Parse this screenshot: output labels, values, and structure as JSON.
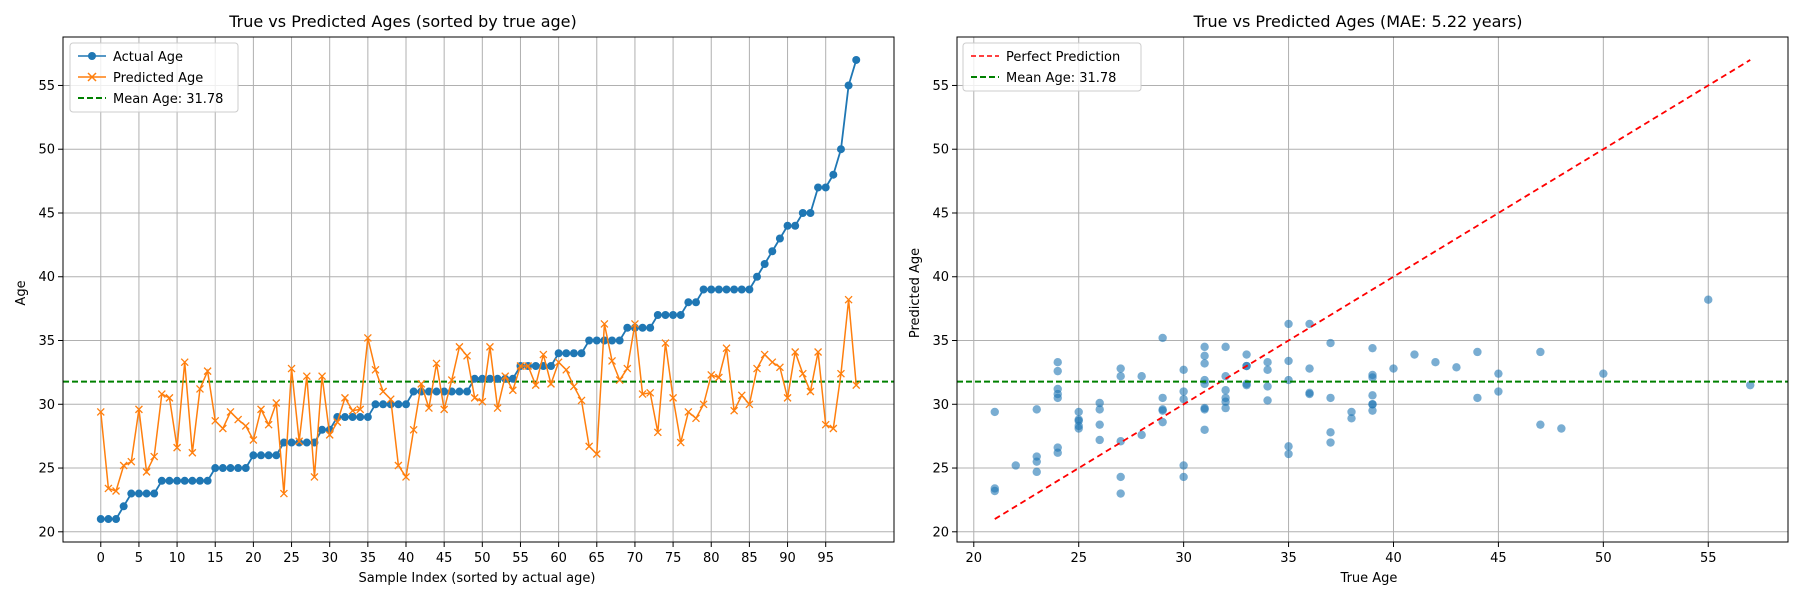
{
  "colors": {
    "actual": "#1f77b4",
    "predicted": "#ff7f0e",
    "mean": "#008000",
    "perfect": "#ff0000",
    "scatter": "#1f77b4",
    "grid": "#b0b0b0"
  },
  "chart_data": [
    {
      "type": "line",
      "title": "True vs Predicted Ages (sorted by true age)",
      "xlabel": "Sample Index (sorted by actual age)",
      "ylabel": "Age",
      "xlim": [
        -4.95,
        103.95
      ],
      "ylim": [
        19.2,
        58.8
      ],
      "grid": true,
      "legend_position": "top-left",
      "x_ticks": [
        0,
        5,
        10,
        15,
        20,
        25,
        30,
        35,
        40,
        45,
        50,
        55,
        60,
        65,
        70,
        75,
        80,
        85,
        90,
        95
      ],
      "y_ticks": [
        20,
        25,
        30,
        35,
        40,
        45,
        50,
        55
      ],
      "series": [
        {
          "name": "Actual Age",
          "marker": "circle",
          "values": [
            21,
            21,
            21,
            22,
            23,
            23,
            23,
            23,
            24,
            24,
            24,
            24,
            24,
            24,
            24,
            25,
            25,
            25,
            25,
            25,
            26,
            26,
            26,
            26,
            27,
            27,
            27,
            27,
            27,
            28,
            28,
            29,
            29,
            29,
            29,
            29,
            30,
            30,
            30,
            30,
            30,
            31,
            31,
            31,
            31,
            31,
            31,
            31,
            31,
            32,
            32,
            32,
            32,
            32,
            32,
            33,
            33,
            33,
            33,
            33,
            34,
            34,
            34,
            34,
            35,
            35,
            35,
            35,
            35,
            36,
            36,
            36,
            36,
            37,
            37,
            37,
            37,
            38,
            38,
            39,
            39,
            39,
            39,
            39,
            39,
            39,
            40,
            41,
            42,
            43,
            44,
            44,
            45,
            45,
            47,
            47,
            48,
            50,
            55,
            57
          ]
        },
        {
          "name": "Predicted Age",
          "marker": "x",
          "values": [
            29.4,
            23.4,
            23.2,
            25.2,
            25.5,
            29.6,
            24.7,
            25.9,
            30.8,
            30.5,
            26.6,
            33.3,
            26.2,
            31.2,
            32.6,
            28.7,
            28.1,
            29.4,
            28.8,
            28.3,
            27.2,
            29.6,
            28.4,
            30.1,
            23.0,
            32.8,
            27.1,
            32.2,
            24.3,
            32.2,
            27.6,
            28.6,
            30.5,
            29.5,
            29.6,
            35.2,
            32.7,
            31.0,
            30.4,
            25.2,
            24.3,
            28.0,
            31.6,
            29.7,
            33.2,
            29.6,
            31.9,
            34.5,
            33.8,
            30.5,
            30.2,
            34.5,
            29.7,
            32.2,
            31.1,
            33.0,
            33.0,
            31.5,
            33.9,
            31.6,
            33.3,
            32.7,
            31.4,
            30.3,
            26.7,
            26.1,
            36.3,
            33.4,
            31.9,
            32.8,
            36.3,
            30.8,
            30.9,
            27.8,
            34.8,
            30.5,
            27.0,
            29.4,
            28.9,
            30.0,
            32.3,
            32.1,
            34.4,
            29.5,
            30.7,
            30.0,
            32.8,
            33.9,
            33.3,
            32.9,
            30.5,
            34.1,
            32.4,
            31.0,
            34.1,
            28.4,
            28.1,
            32.4,
            38.2,
            31.5
          ]
        },
        {
          "name": "Mean Age: 31.78",
          "style": "dashed",
          "value": 31.78
        }
      ]
    },
    {
      "type": "scatter",
      "title": "True vs Predicted Ages (MAE: 5.22 years)",
      "xlabel": "True Age",
      "ylabel": "Predicted Age",
      "xlim": [
        19.2,
        58.8
      ],
      "ylim": [
        19.2,
        58.8
      ],
      "grid": true,
      "legend_position": "top-left",
      "x_ticks": [
        20,
        25,
        30,
        35,
        40,
        45,
        50,
        55
      ],
      "y_ticks": [
        20,
        25,
        30,
        35,
        40,
        45,
        50,
        55
      ],
      "series": [
        {
          "name": "Perfect Prediction",
          "style": "dashed",
          "x": [
            21,
            57
          ],
          "y": [
            21,
            57
          ]
        },
        {
          "name": "Mean Age: 31.78",
          "style": "dashed",
          "value": 31.78
        },
        {
          "name": "",
          "marker": "circle",
          "alpha": 0.6,
          "x_from": "chart_data.0.series.0.values",
          "y_from": "chart_data.0.series.1.values"
        }
      ]
    }
  ]
}
